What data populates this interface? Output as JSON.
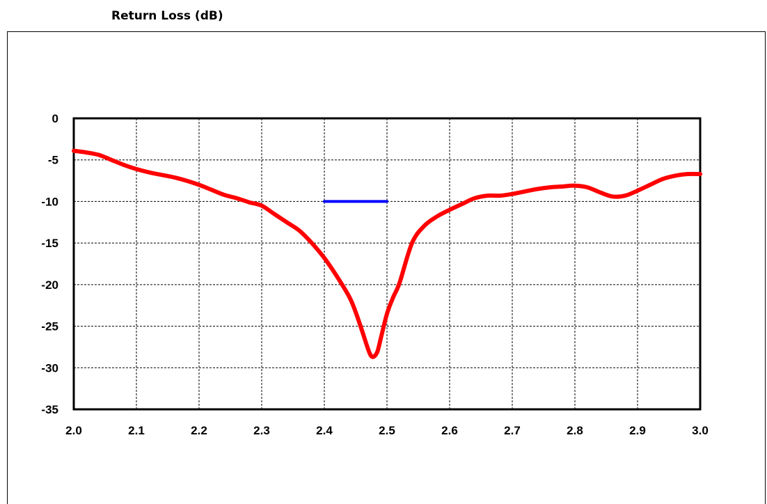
{
  "chart_data": {
    "type": "line",
    "title": "Return Loss (dB)",
    "xlabel": "",
    "ylabel": "",
    "xlim": [
      2.0,
      3.0
    ],
    "ylim": [
      -35,
      0
    ],
    "x_ticks": [
      "2.0",
      "2.1",
      "2.2",
      "2.3",
      "2.4",
      "2.5",
      "2.6",
      "2.7",
      "2.8",
      "2.9",
      "3.0"
    ],
    "y_ticks": [
      "0",
      "-5",
      "-10",
      "-15",
      "-20",
      "-25",
      "-30",
      "-35"
    ],
    "grid": true,
    "series": [
      {
        "color": "#ff0000",
        "x": [
          2.0,
          2.02,
          2.04,
          2.06,
          2.08,
          2.1,
          2.12,
          2.14,
          2.16,
          2.18,
          2.2,
          2.22,
          2.24,
          2.26,
          2.28,
          2.3,
          2.32,
          2.34,
          2.36,
          2.38,
          2.4,
          2.42,
          2.44,
          2.45,
          2.46,
          2.47,
          2.475,
          2.48,
          2.485,
          2.49,
          2.5,
          2.51,
          2.52,
          2.54,
          2.56,
          2.58,
          2.6,
          2.62,
          2.64,
          2.66,
          2.68,
          2.7,
          2.72,
          2.74,
          2.76,
          2.78,
          2.8,
          2.82,
          2.84,
          2.86,
          2.88,
          2.9,
          2.92,
          2.94,
          2.96,
          2.98,
          3.0
        ],
        "y": [
          -3.9,
          -4.1,
          -4.4,
          -5.0,
          -5.6,
          -6.1,
          -6.5,
          -6.8,
          -7.1,
          -7.5,
          -8.0,
          -8.6,
          -9.2,
          -9.6,
          -10.1,
          -10.5,
          -11.5,
          -12.5,
          -13.5,
          -15.0,
          -16.8,
          -19.0,
          -21.5,
          -23.3,
          -25.5,
          -27.8,
          -28.6,
          -28.6,
          -28.0,
          -26.5,
          -23.5,
          -21.5,
          -19.8,
          -15.0,
          -12.9,
          -11.8,
          -11.0,
          -10.3,
          -9.6,
          -9.3,
          -9.3,
          -9.1,
          -8.8,
          -8.5,
          -8.3,
          -8.2,
          -8.1,
          -8.3,
          -8.9,
          -9.4,
          -9.3,
          -8.7,
          -8.0,
          -7.3,
          -6.9,
          -6.7,
          -6.7
        ]
      },
      {
        "color": "#0000ff",
        "x": [
          2.4,
          2.5
        ],
        "y": [
          -10,
          -10
        ]
      }
    ]
  }
}
